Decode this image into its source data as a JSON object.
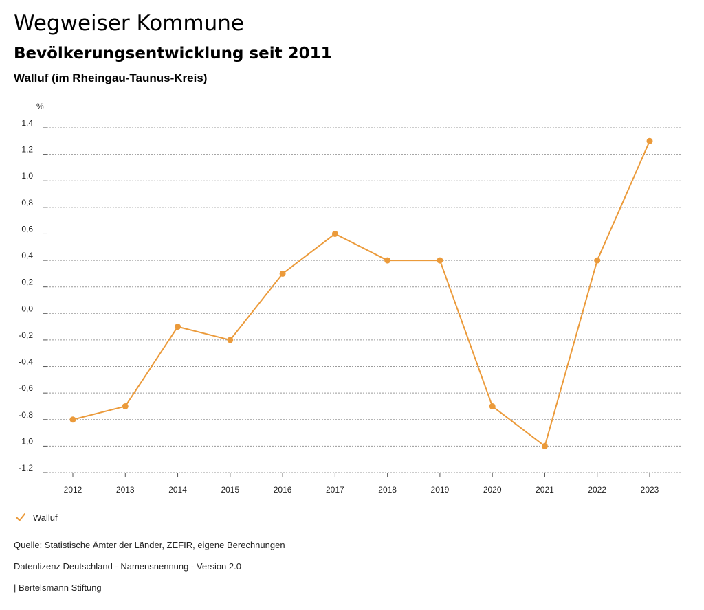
{
  "header": {
    "title": "Wegweiser Kommune",
    "subtitle": "Bevölkerungsentwicklung seit 2011",
    "region": "Walluf (im Rheingau-Taunus-Kreis)"
  },
  "chart_data": {
    "type": "line",
    "ylabel": "%",
    "xlabel": "",
    "categories": [
      "2012",
      "2013",
      "2014",
      "2015",
      "2016",
      "2017",
      "2018",
      "2019",
      "2020",
      "2021",
      "2022",
      "2023"
    ],
    "series": [
      {
        "name": "Walluf",
        "color": "#EB9A3A",
        "values": [
          -0.8,
          -0.7,
          -0.1,
          -0.2,
          0.3,
          0.6,
          0.4,
          0.4,
          -0.7,
          -1.0,
          0.4,
          1.3
        ]
      }
    ],
    "ylim": [
      -1.2,
      1.4
    ],
    "yticks": [
      1.4,
      1.2,
      1.0,
      0.8,
      0.6,
      0.4,
      0.2,
      0.0,
      -0.2,
      -0.4,
      -0.6,
      -0.8,
      -1.0,
      -1.2
    ],
    "ytick_labels": [
      "1,4",
      "1,2",
      "1,0",
      "0,8",
      "0,6",
      "0,4",
      "0,2",
      "0,0",
      "-0,2",
      "-0,4",
      "-0,6",
      "-0,8",
      "-1,0",
      "-1,2"
    ],
    "grid": true,
    "legend_position": "bottom-left"
  },
  "legend": {
    "label": "Walluf",
    "color": "#EB9A3A"
  },
  "footer": {
    "source": "Quelle: Statistische Ämter der Länder, ZEFIR, eigene Berechnungen",
    "license": "Datenlizenz Deutschland - Namensnennung - Version 2.0",
    "publisher": "| Bertelsmann Stiftung"
  }
}
